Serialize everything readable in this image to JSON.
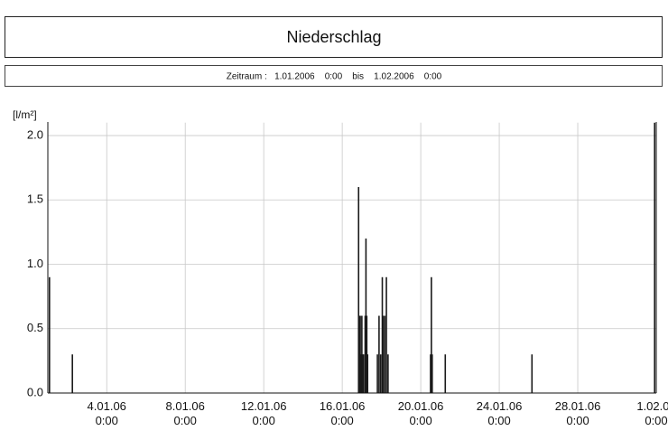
{
  "chart_data": {
    "type": "bar",
    "title": "Niederschlag",
    "subtitle": "Zeitraum :   1.01.2006    0:00    bis    1.02.2006    0:00",
    "y_label": "[l/m²]",
    "color": "#1a1a1a",
    "grid": true,
    "xlim": [
      "2006-01-01 00:00",
      "2006-02-01 00:00"
    ],
    "xticks": [
      {
        "value": "2006-01-04 00:00",
        "label": "4.01.06\n0:00"
      },
      {
        "value": "2006-01-08 00:00",
        "label": "8.01.06\n0:00"
      },
      {
        "value": "2006-01-12 00:00",
        "label": "12.01.06\n0:00"
      },
      {
        "value": "2006-01-16 00:00",
        "label": "16.01.06\n0:00"
      },
      {
        "value": "2006-01-20 00:00",
        "label": "20.01.06\n0:00"
      },
      {
        "value": "2006-01-24 00:00",
        "label": "24.01.06\n0:00"
      },
      {
        "value": "2006-01-28 00:00",
        "label": "28.01.06\n0:00"
      },
      {
        "value": "2006-02-01 00:00",
        "label": "1.02.06\n0:00"
      }
    ],
    "ylim": [
      0,
      2.1
    ],
    "yticks": [
      {
        "value": 0,
        "label": "0.0"
      },
      0.5,
      {
        "value": 1,
        "label": "1.0"
      },
      1.5,
      {
        "value": 2,
        "label": "2.0"
      }
    ],
    "x": [
      "2006-01-01 02:00",
      "2006-01-02 06:00",
      "2006-01-16 20:00",
      "2006-01-16 21:00",
      "2006-01-16 22:00",
      "2006-01-16 23:00",
      "2006-01-17 00:00",
      "2006-01-17 01:00",
      "2006-01-17 02:00",
      "2006-01-17 04:00",
      "2006-01-17 05:00",
      "2006-01-17 06:00",
      "2006-01-17 07:00",
      "2006-01-17 19:00",
      "2006-01-17 21:00",
      "2006-01-17 23:00",
      "2006-01-18 01:00",
      "2006-01-18 02:00",
      "2006-01-18 04:00",
      "2006-01-18 06:00",
      "2006-01-18 08:00",
      "2006-01-20 12:00",
      "2006-01-20 13:00",
      "2006-01-20 14:00",
      "2006-01-21 06:00",
      "2006-01-25 16:00",
      "2006-01-31 22:00"
    ],
    "values": [
      0.9,
      0.3,
      1.6,
      0.6,
      0.6,
      0.3,
      0.6,
      0.3,
      0.3,
      0.6,
      1.2,
      0.6,
      0.3,
      0.3,
      0.6,
      0.3,
      0.9,
      0.6,
      0.6,
      0.9,
      0.3,
      0.3,
      0.9,
      0.3,
      0.3,
      0.3,
      2.1
    ]
  }
}
